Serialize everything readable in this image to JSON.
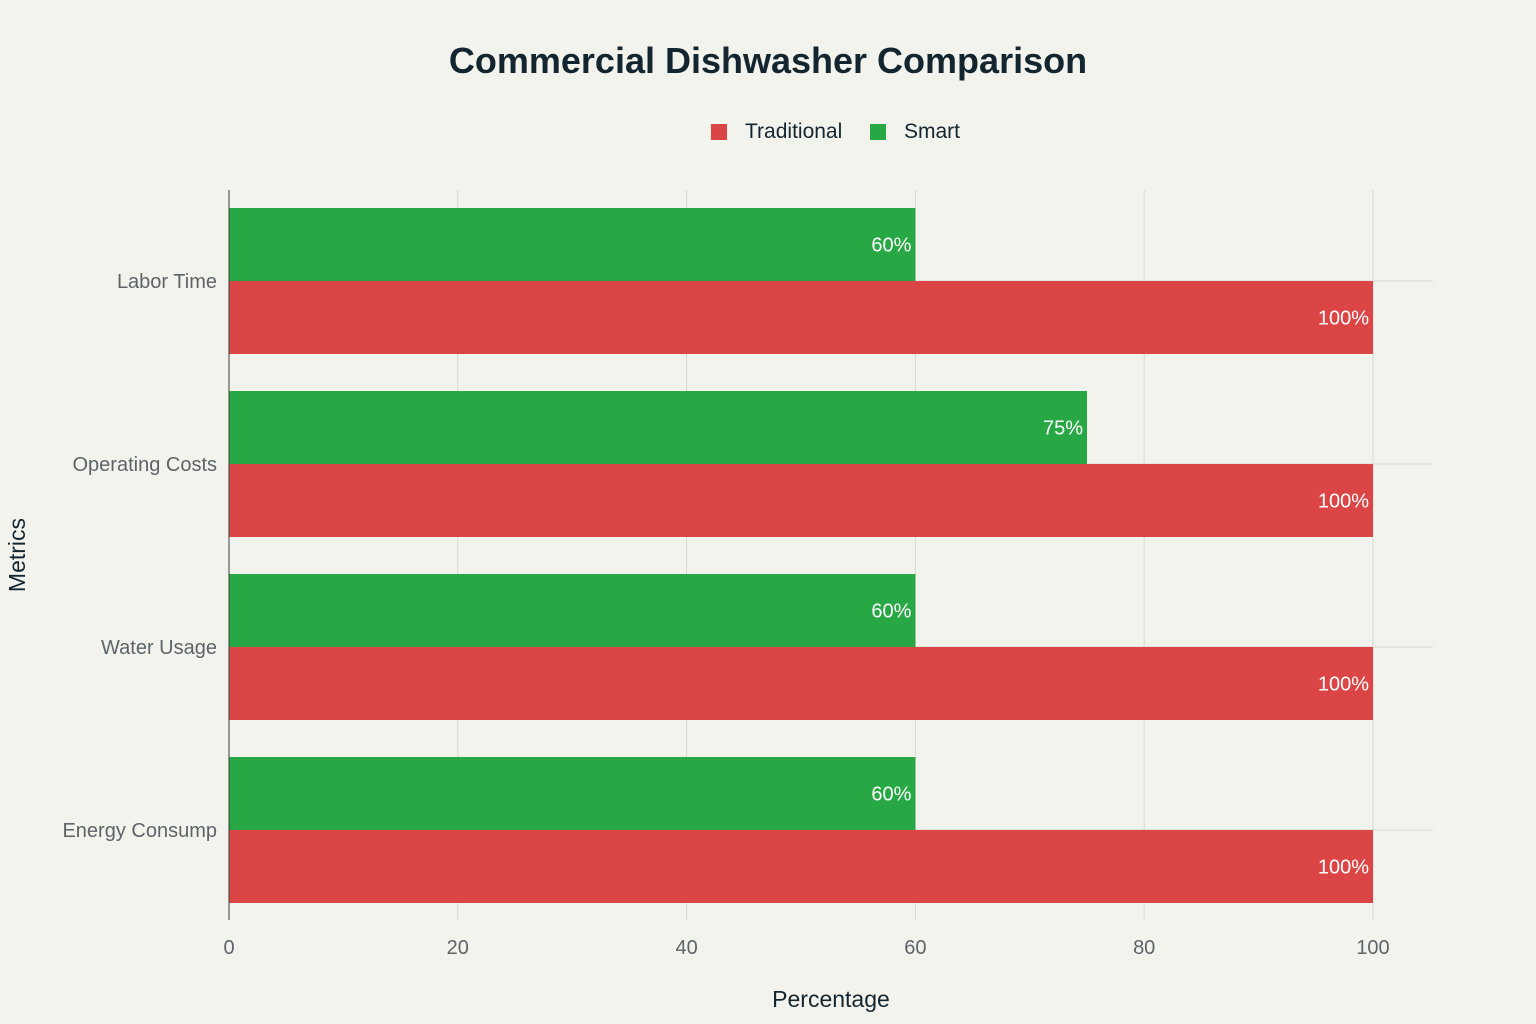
{
  "chart_data": {
    "type": "bar",
    "orientation": "horizontal",
    "title": "Commercial Dishwasher Comparison",
    "xlabel": "Percentage",
    "ylabel": "Metrics",
    "xlim": [
      0,
      105
    ],
    "xticks": [
      0,
      20,
      40,
      60,
      80,
      100
    ],
    "grid": true,
    "legend_position": "top-center",
    "categories": [
      "Labor Time",
      "Operating Costs",
      "Water Usage",
      "Energy Consump"
    ],
    "series": [
      {
        "name": "Traditional",
        "color": "#db4545",
        "values": [
          100,
          100,
          100,
          100
        ],
        "labels": [
          "100%",
          "100%",
          "100%",
          "100%"
        ]
      },
      {
        "name": "Smart",
        "color": "#28a745",
        "values": [
          60,
          75,
          60,
          60
        ],
        "labels": [
          "60%",
          "75%",
          "60%",
          "60%"
        ]
      }
    ]
  }
}
